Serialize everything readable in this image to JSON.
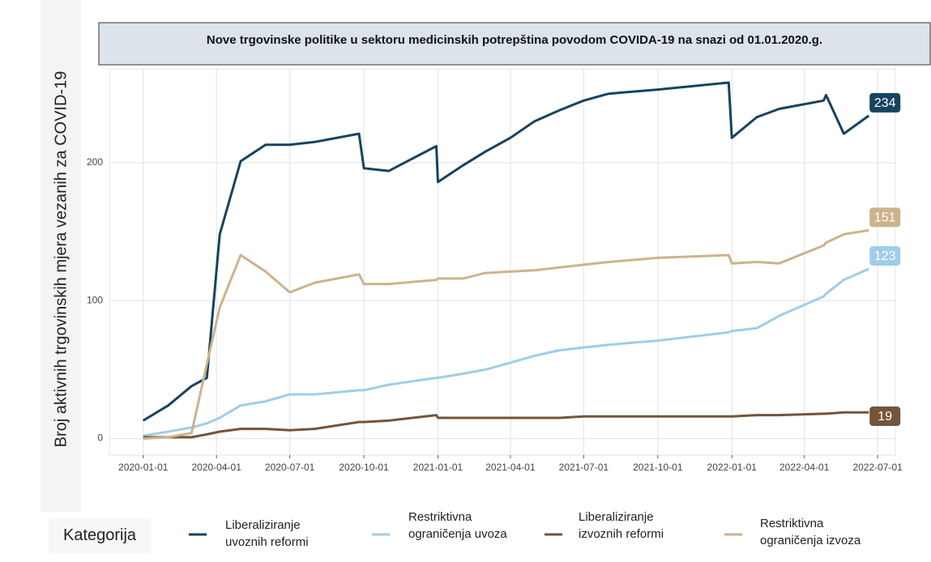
{
  "chart_data": {
    "type": "line",
    "title": "Nove trgovinske politike u sektoru medicinskih potrepština povodom COVIDA-19  na snazi od 01.01.2020.g.",
    "y_label": "Broj aktivnih trgovinskih mjera vezanih za COVID-19",
    "legend_title": "Kategorija",
    "x": [
      "2020-01-01",
      "2020-02-01",
      "2020-03-01",
      "2020-03-20",
      "2020-04-05",
      "2020-05-01",
      "2020-06-01",
      "2020-07-01",
      "2020-08-01",
      "2020-09-25",
      "2020-10-01",
      "2020-11-01",
      "2020-12-30",
      "2021-01-01",
      "2021-02-01",
      "2021-03-01",
      "2021-04-01",
      "2021-05-01",
      "2021-06-01",
      "2021-07-01",
      "2021-08-01",
      "2021-10-01",
      "2021-12-28",
      "2022-01-01",
      "2022-02-01",
      "2022-03-01",
      "2022-04-25",
      "2022-04-28",
      "2022-05-20",
      "2022-06-20"
    ],
    "series": [
      {
        "name": "Liberaliziranje uvoznih reformi",
        "color": "#17435f",
        "values": [
          13,
          24,
          38,
          44,
          148,
          201,
          213,
          213,
          215,
          221,
          196,
          194,
          212,
          186,
          198,
          208,
          218,
          230,
          238,
          245,
          250,
          253,
          258,
          218,
          233,
          239,
          245,
          249,
          221,
          234
        ]
      },
      {
        "name": "Restriktivna ograničenja uvoza",
        "color": "#9fcde9",
        "values": [
          2,
          5,
          8,
          11,
          15,
          24,
          27,
          32,
          32,
          35,
          35,
          39,
          44,
          44,
          47,
          50,
          55,
          60,
          64,
          66,
          68,
          71,
          77,
          78,
          80,
          89,
          103,
          105,
          115,
          123
        ]
      },
      {
        "name": "Liberaliziranje izvoznih reformi",
        "color": "#75543a",
        "values": [
          1,
          1,
          1,
          3,
          5,
          7,
          7,
          6,
          7,
          12,
          12,
          13,
          17,
          15,
          15,
          15,
          15,
          15,
          15,
          16,
          16,
          16,
          16,
          16,
          17,
          17,
          18,
          18,
          19,
          19
        ]
      },
      {
        "name": "Restriktivna ograničenja izvoza",
        "color": "#cbb38d",
        "values": [
          0,
          1,
          4,
          54,
          95,
          133,
          121,
          106,
          113,
          119,
          112,
          112,
          115,
          116,
          116,
          120,
          121,
          122,
          124,
          126,
          128,
          131,
          133,
          127,
          128,
          127,
          140,
          142,
          148,
          151
        ]
      }
    ],
    "xlim": [
      "2019-11-20",
      "2022-07-23"
    ],
    "xticks": [
      "2020-01-01",
      "2020-04-01",
      "2020-07-01",
      "2020-10-01",
      "2021-01-01",
      "2021-04-01",
      "2021-07-01",
      "2021-10-01",
      "2022-01-01",
      "2022-04-01",
      "2022-07-01"
    ],
    "ylim": [
      -12,
      268
    ],
    "yticks": [
      0,
      100,
      200
    ],
    "grid": true
  }
}
